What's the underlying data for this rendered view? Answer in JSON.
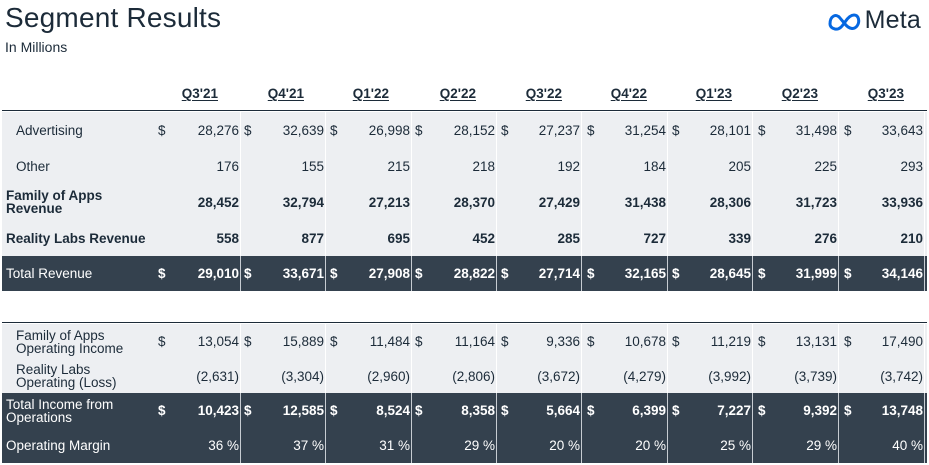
{
  "header": {
    "title": "Segment Results",
    "subtitle": "In Millions",
    "logo_text": "Meta",
    "logo_icon": "meta-infinity-icon"
  },
  "currency_symbol": "$",
  "quarters": [
    "Q3'21",
    "Q4'21",
    "Q1'22",
    "Q2'22",
    "Q3'22",
    "Q4'22",
    "Q1'23",
    "Q2'23",
    "Q3'23"
  ],
  "rows": [
    {
      "id": "advertising",
      "label": "Advertising",
      "style": "gray",
      "currency": true,
      "values": [
        "28,276",
        "32,639",
        "26,998",
        "28,152",
        "27,237",
        "31,254",
        "28,101",
        "31,498",
        "33,643"
      ]
    },
    {
      "id": "other",
      "label": "Other",
      "style": "gray",
      "currency": false,
      "values": [
        "176",
        "155",
        "215",
        "218",
        "192",
        "184",
        "205",
        "225",
        "293"
      ]
    },
    {
      "id": "foa-revenue",
      "label": "Family of Apps Revenue",
      "style": "gray-bold",
      "currency": false,
      "values": [
        "28,452",
        "32,794",
        "27,213",
        "28,370",
        "27,429",
        "31,438",
        "28,306",
        "31,723",
        "33,936"
      ]
    },
    {
      "id": "rl-revenue",
      "label": "Reality Labs Revenue",
      "style": "gray-bold",
      "currency": false,
      "values": [
        "558",
        "877",
        "695",
        "452",
        "285",
        "727",
        "339",
        "276",
        "210"
      ]
    },
    {
      "id": "total-revenue",
      "label": "Total Revenue",
      "style": "dark-bold",
      "currency": true,
      "values": [
        "29,010",
        "33,671",
        "27,908",
        "28,822",
        "27,714",
        "32,165",
        "28,645",
        "31,999",
        "34,146"
      ]
    },
    {
      "id": "foa-op-income",
      "label": "Family of Apps Operating Income",
      "style": "gray",
      "currency": true,
      "values": [
        "13,054",
        "15,889",
        "11,484",
        "11,164",
        "9,336",
        "10,678",
        "11,219",
        "13,131",
        "17,490"
      ]
    },
    {
      "id": "rl-op-loss",
      "label": "Reality Labs Operating (Loss)",
      "style": "gray",
      "currency": false,
      "values": [
        "(2,631)",
        "(3,304)",
        "(2,960)",
        "(2,806)",
        "(3,672)",
        "(4,279)",
        "(3,992)",
        "(3,739)",
        "(3,742)"
      ]
    },
    {
      "id": "total-op-income",
      "label": "Total Income from Operations",
      "style": "dark-bold",
      "currency": true,
      "values": [
        "10,423",
        "12,585",
        "8,524",
        "8,358",
        "5,664",
        "6,399",
        "7,227",
        "9,392",
        "13,748"
      ]
    },
    {
      "id": "op-margin",
      "label": "Operating Margin",
      "style": "dark",
      "currency": false,
      "values": [
        "36 %",
        "37 %",
        "31 %",
        "29 %",
        "20 %",
        "20 %",
        "25 %",
        "29 %",
        "40 %"
      ]
    }
  ],
  "colors": {
    "text": "#1c2b39",
    "row_gray": "#edeff2",
    "row_dark": "#34414e",
    "logo_blue": "#0668e1"
  }
}
